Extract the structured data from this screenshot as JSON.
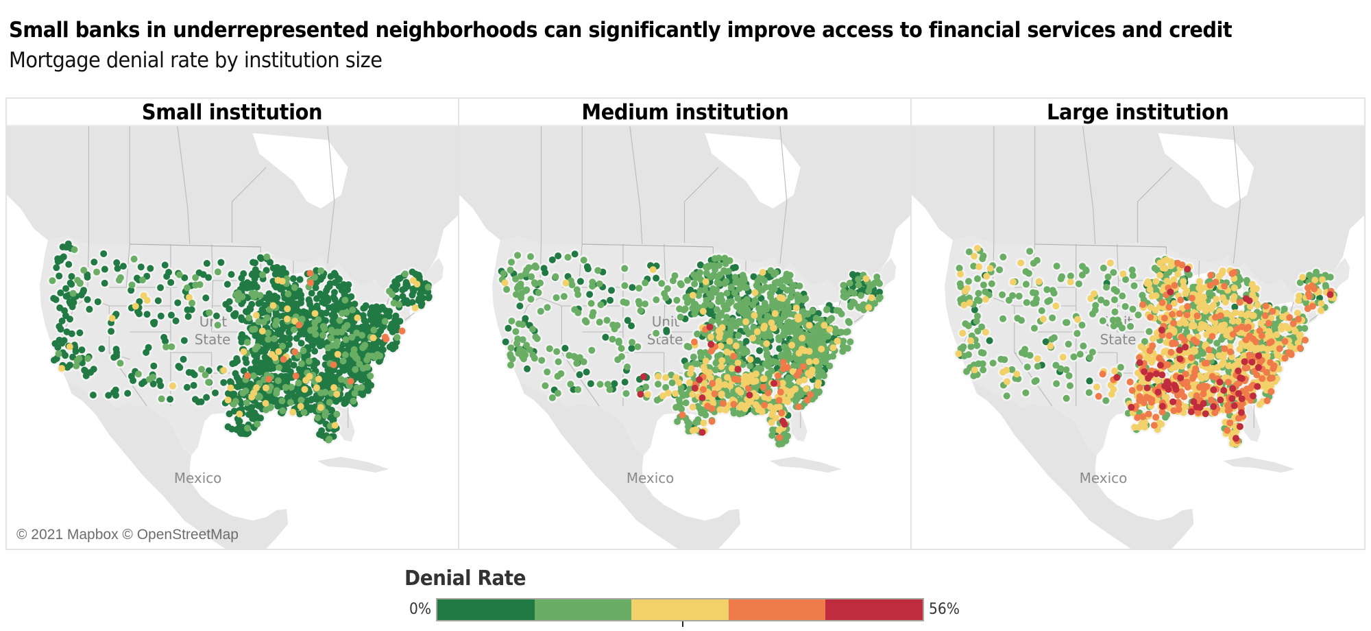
{
  "header": {
    "title": "Small banks in underrepresented neighborhoods can significantly improve access to financial services and credit",
    "subtitle": "Mortgage denial rate by institution size"
  },
  "panels": [
    {
      "id": "small",
      "label": "Small institution",
      "show_attribution": true
    },
    {
      "id": "medium",
      "label": "Medium institution",
      "show_attribution": false
    },
    {
      "id": "large",
      "label": "Large institution",
      "show_attribution": false
    }
  ],
  "map_labels": {
    "country_us_line1": "Unit",
    "country_us_line2": "State",
    "country_mx": "Mexico"
  },
  "attribution": "© 2021 Mapbox © OpenStreetMap",
  "legend": {
    "title": "Denial Rate",
    "min_label": "0%",
    "max_label": "56%",
    "colors": [
      "#217a43",
      "#6aae66",
      "#f3d16a",
      "#f07b4a",
      "#bf2c3e"
    ]
  },
  "chart_data": {
    "type": "scatter",
    "subtype": "dot-map",
    "title": "Small banks in underrepresented neighborhoods can significantly improve access to financial services and credit",
    "subtitle": "Mortgage denial rate by institution size",
    "facets": [
      "Small institution",
      "Medium institution",
      "Large institution"
    ],
    "color_scale": {
      "label": "Denial Rate",
      "range": [
        0,
        56
      ],
      "unit": "%",
      "bins": [
        {
          "range": [
            0,
            11.2
          ],
          "color": "#217a43"
        },
        {
          "range": [
            11.2,
            22.4
          ],
          "color": "#6aae66"
        },
        {
          "range": [
            22.4,
            33.6
          ],
          "color": "#f3d16a"
        },
        {
          "range": [
            33.6,
            44.8
          ],
          "color": "#f07b4a"
        },
        {
          "range": [
            44.8,
            56
          ],
          "color": "#bf2c3e"
        }
      ]
    },
    "region": "Contiguous United States",
    "series": [
      {
        "name": "Small institution",
        "color_share": {
          "#217a43": 0.86,
          "#6aae66": 0.12,
          "#f3d16a": 0.015,
          "#f07b4a": 0.005,
          "#bf2c3e": 0.0
        },
        "description": "Almost entirely dark green (lowest denial rate); dense in Midwest, Southeast and Northeast"
      },
      {
        "name": "Medium institution",
        "color_share": {
          "#217a43": 0.25,
          "#6aae66": 0.6,
          "#f3d16a": 0.12,
          "#f07b4a": 0.025,
          "#bf2c3e": 0.005
        },
        "description": "Mostly light green; yellow/orange clusters in the Deep South (Mississippi, Louisiana, Alabama)"
      },
      {
        "name": "Large institution",
        "color_share": {
          "#217a43": 0.05,
          "#6aae66": 0.4,
          "#f3d16a": 0.38,
          "#f07b4a": 0.14,
          "#bf2c3e": 0.03
        },
        "description": "Yellow dominates the South and East with orange/red hotspots in the Southeast; West mostly light green"
      }
    ]
  },
  "dot_params": {
    "small": {
      "seed": 11,
      "weights": [
        0.86,
        0.12,
        0.015,
        0.005,
        0.0
      ],
      "south_weights": [
        0.82,
        0.14,
        0.03,
        0.01,
        0.0
      ],
      "west_weights": [
        0.85,
        0.13,
        0.02,
        0.0,
        0.0
      ]
    },
    "medium": {
      "seed": 23,
      "weights": [
        0.35,
        0.6,
        0.05,
        0.0,
        0.0
      ],
      "south_weights": [
        0.12,
        0.55,
        0.25,
        0.06,
        0.02
      ],
      "west_weights": [
        0.3,
        0.67,
        0.03,
        0.0,
        0.0
      ]
    },
    "large": {
      "seed": 37,
      "weights": [
        0.04,
        0.45,
        0.4,
        0.1,
        0.01
      ],
      "south_weights": [
        0.01,
        0.22,
        0.45,
        0.24,
        0.08
      ],
      "west_weights": [
        0.04,
        0.82,
        0.14,
        0.0,
        0.0
      ]
    }
  }
}
